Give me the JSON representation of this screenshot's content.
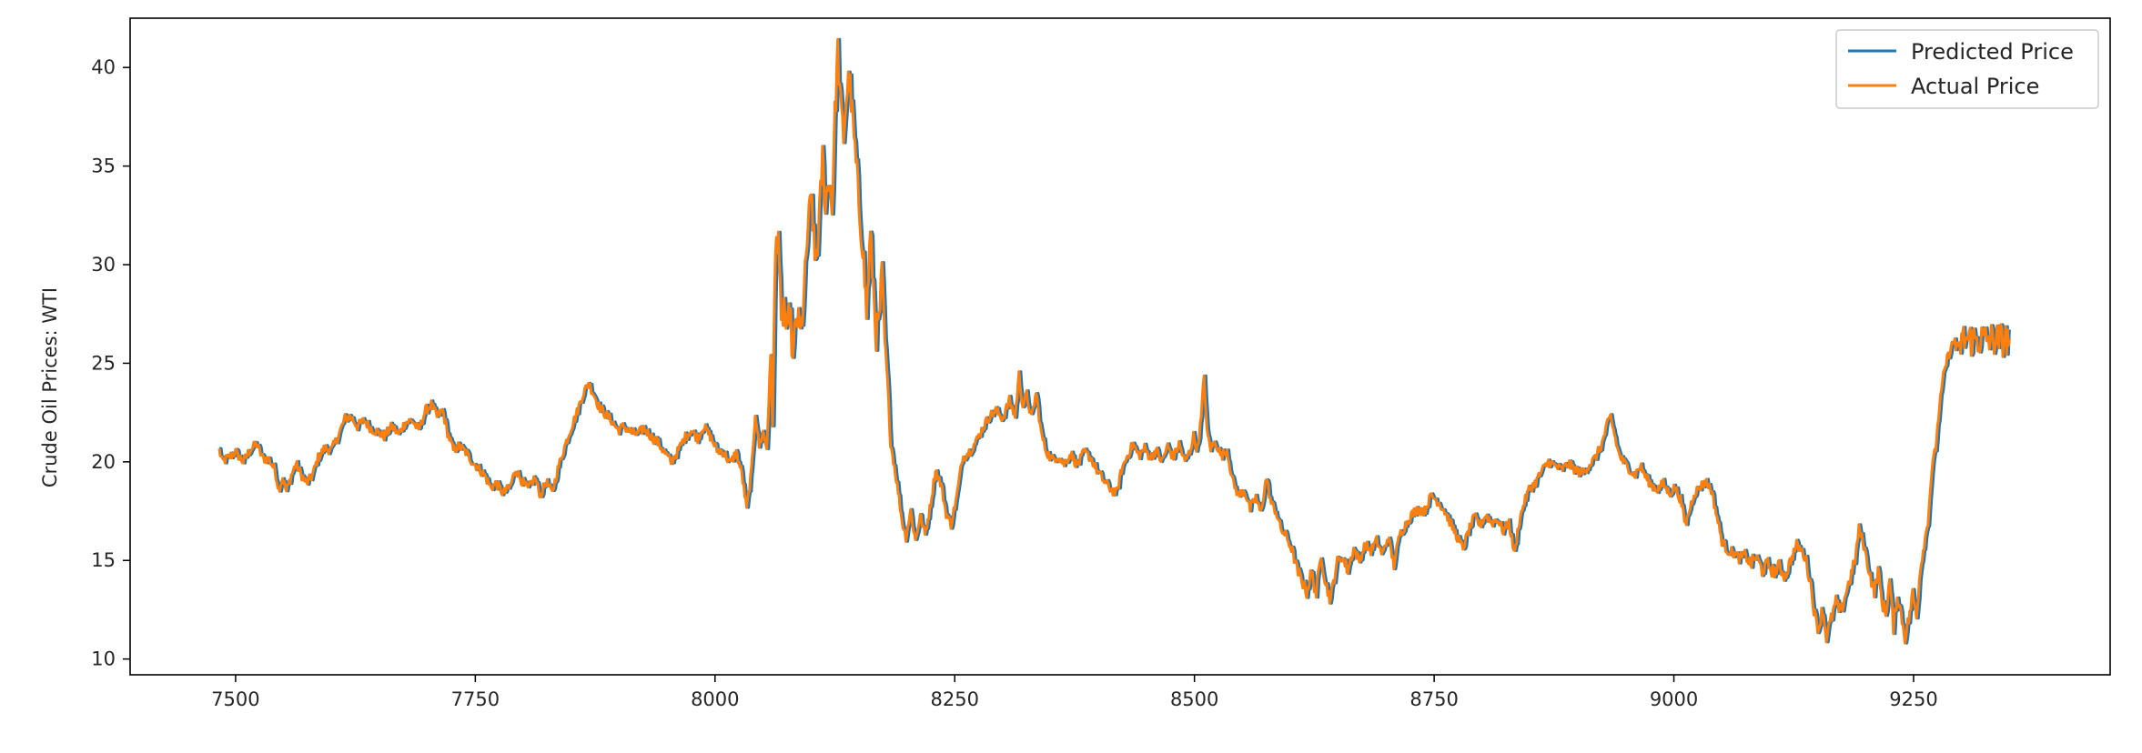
{
  "chart_data": {
    "type": "line",
    "title": "",
    "xlabel": "",
    "ylabel": "Crude Oil Prices: WTI",
    "xlim": [
      7390,
      9455
    ],
    "ylim": [
      9.2,
      42.5
    ],
    "xticks": [
      7500,
      7750,
      8000,
      8250,
      8500,
      8750,
      9000,
      9250
    ],
    "yticks": [
      10,
      15,
      20,
      25,
      30,
      35,
      40
    ],
    "grid": false,
    "legend_position": "top-right",
    "colors": {
      "predicted": "#1f77b4",
      "actual": "#ff7f0e"
    },
    "x_start": 7483,
    "x_end": 9350,
    "predicted_lag": 2,
    "series": [
      {
        "name": "Predicted Price",
        "color": "#1f77b4",
        "key": "predicted"
      },
      {
        "name": "Actual Price",
        "color": "#ff7f0e",
        "key": "actual"
      }
    ],
    "actual_keypoints": [
      [
        7483,
        20.6
      ],
      [
        7486,
        20.0
      ],
      [
        7492,
        20.2
      ],
      [
        7500,
        20.5
      ],
      [
        7508,
        20.0
      ],
      [
        7515,
        20.6
      ],
      [
        7522,
        20.9
      ],
      [
        7528,
        20.2
      ],
      [
        7535,
        20.1
      ],
      [
        7541,
        19.6
      ],
      [
        7545,
        18.6
      ],
      [
        7549,
        19.2
      ],
      [
        7553,
        18.5
      ],
      [
        7558,
        19.3
      ],
      [
        7563,
        19.9
      ],
      [
        7568,
        19.4
      ],
      [
        7574,
        18.9
      ],
      [
        7580,
        19.3
      ],
      [
        7586,
        20.2
      ],
      [
        7593,
        20.7
      ],
      [
        7600,
        20.6
      ],
      [
        7607,
        21.3
      ],
      [
        7614,
        22.2
      ],
      [
        7620,
        22.3
      ],
      [
        7627,
        21.8
      ],
      [
        7634,
        22.1
      ],
      [
        7641,
        21.7
      ],
      [
        7648,
        21.5
      ],
      [
        7655,
        21.3
      ],
      [
        7663,
        21.8
      ],
      [
        7670,
        21.4
      ],
      [
        7677,
        22.0
      ],
      [
        7684,
        22.1
      ],
      [
        7691,
        21.6
      ],
      [
        7698,
        22.6
      ],
      [
        7704,
        22.9
      ],
      [
        7710,
        22.3
      ],
      [
        7716,
        22.6
      ],
      [
        7721,
        21.5
      ],
      [
        7727,
        20.6
      ],
      [
        7733,
        20.8
      ],
      [
        7740,
        20.5
      ],
      [
        7747,
        20.0
      ],
      [
        7753,
        19.7
      ],
      [
        7760,
        19.3
      ],
      [
        7766,
        18.7
      ],
      [
        7772,
        18.9
      ],
      [
        7779,
        18.4
      ],
      [
        7786,
        18.7
      ],
      [
        7792,
        19.6
      ],
      [
        7799,
        19.0
      ],
      [
        7805,
        18.6
      ],
      [
        7812,
        19.2
      ],
      [
        7818,
        18.3
      ],
      [
        7824,
        19.0
      ],
      [
        7830,
        18.4
      ],
      [
        7836,
        19.6
      ],
      [
        7842,
        20.6
      ],
      [
        7849,
        21.6
      ],
      [
        7856,
        22.5
      ],
      [
        7862,
        23.4
      ],
      [
        7868,
        24.0
      ],
      [
        7873,
        23.5
      ],
      [
        7879,
        22.8
      ],
      [
        7886,
        22.4
      ],
      [
        7892,
        22.1
      ],
      [
        7899,
        21.6
      ],
      [
        7905,
        21.8
      ],
      [
        7912,
        21.5
      ],
      [
        7919,
        21.4
      ],
      [
        7926,
        21.7
      ],
      [
        7933,
        21.3
      ],
      [
        7940,
        21.0
      ],
      [
        7947,
        20.5
      ],
      [
        7954,
        20.0
      ],
      [
        7961,
        20.5
      ],
      [
        7968,
        21.2
      ],
      [
        7975,
        21.6
      ],
      [
        7982,
        21.2
      ],
      [
        7988,
        21.8
      ],
      [
        7995,
        21.3
      ],
      [
        8002,
        20.6
      ],
      [
        8009,
        20.5
      ],
      [
        8016,
        19.9
      ],
      [
        8022,
        20.5
      ],
      [
        8028,
        19.4
      ],
      [
        8033,
        17.6
      ],
      [
        8038,
        19.5
      ],
      [
        8042,
        22.5
      ],
      [
        8046,
        20.8
      ],
      [
        8050,
        21.5
      ],
      [
        8054,
        20.7
      ],
      [
        8058,
        25.3
      ],
      [
        8060,
        22.0
      ],
      [
        8063,
        30.5
      ],
      [
        8066,
        32.0
      ],
      [
        8069,
        26.5
      ],
      [
        8072,
        28.0
      ],
      [
        8075,
        26.2
      ],
      [
        8078,
        27.8
      ],
      [
        8081,
        25.2
      ],
      [
        8085,
        27.5
      ],
      [
        8089,
        26.4
      ],
      [
        8093,
        28.5
      ],
      [
        8097,
        32.0
      ],
      [
        8101,
        33.5
      ],
      [
        8104,
        30.0
      ],
      [
        8108,
        31.5
      ],
      [
        8112,
        35.5
      ],
      [
        8115,
        33.0
      ],
      [
        8119,
        34.5
      ],
      [
        8122,
        32.8
      ],
      [
        8125,
        37.5
      ],
      [
        8128,
        40.8
      ],
      [
        8131,
        38.0
      ],
      [
        8134,
        36.5
      ],
      [
        8137,
        38.5
      ],
      [
        8140,
        39.5
      ],
      [
        8144,
        37.0
      ],
      [
        8148,
        34.5
      ],
      [
        8151,
        32.5
      ],
      [
        8154,
        31.0
      ],
      [
        8158,
        27.5
      ],
      [
        8162,
        31.5
      ],
      [
        8165,
        29.0
      ],
      [
        8168,
        26.5
      ],
      [
        8171,
        27.0
      ],
      [
        8174,
        29.5
      ],
      [
        8177,
        26.2
      ],
      [
        8180,
        24.0
      ],
      [
        8183,
        21.0
      ],
      [
        8187,
        19.8
      ],
      [
        8191,
        18.5
      ],
      [
        8195,
        17.0
      ],
      [
        8199,
        16.2
      ],
      [
        8204,
        17.5
      ],
      [
        8209,
        16.0
      ],
      [
        8214,
        17.3
      ],
      [
        8219,
        16.3
      ],
      [
        8224,
        17.6
      ],
      [
        8230,
        19.6
      ],
      [
        8236,
        18.8
      ],
      [
        8241,
        17.4
      ],
      [
        8246,
        16.8
      ],
      [
        8252,
        18.2
      ],
      [
        8258,
        20.2
      ],
      [
        8265,
        20.5
      ],
      [
        8272,
        21.0
      ],
      [
        8279,
        21.7
      ],
      [
        8286,
        22.3
      ],
      [
        8293,
        22.6
      ],
      [
        8300,
        22.2
      ],
      [
        8307,
        23.1
      ],
      [
        8313,
        22.3
      ],
      [
        8317,
        24.4
      ],
      [
        8321,
        22.8
      ],
      [
        8325,
        23.4
      ],
      [
        8330,
        22.2
      ],
      [
        8335,
        23.5
      ],
      [
        8340,
        21.5
      ],
      [
        8345,
        20.6
      ],
      [
        8351,
        20.1
      ],
      [
        8357,
        20.3
      ],
      [
        8364,
        19.9
      ],
      [
        8371,
        20.4
      ],
      [
        8378,
        19.8
      ],
      [
        8385,
        20.5
      ],
      [
        8392,
        20.2
      ],
      [
        8399,
        19.5
      ],
      [
        8406,
        19.0
      ],
      [
        8413,
        18.6
      ],
      [
        8419,
        18.4
      ],
      [
        8424,
        19.6
      ],
      [
        8430,
        20.3
      ],
      [
        8436,
        20.9
      ],
      [
        8442,
        20.3
      ],
      [
        8448,
        20.7
      ],
      [
        8454,
        20.2
      ],
      [
        8460,
        20.6
      ],
      [
        8466,
        20.0
      ],
      [
        8472,
        20.8
      ],
      [
        8478,
        20.2
      ],
      [
        8484,
        20.9
      ],
      [
        8490,
        20.0
      ],
      [
        8495,
        20.5
      ],
      [
        8499,
        21.3
      ],
      [
        8503,
        20.6
      ],
      [
        8507,
        22.2
      ],
      [
        8510,
        24.4
      ],
      [
        8513,
        21.5
      ],
      [
        8517,
        20.7
      ],
      [
        8522,
        21.0
      ],
      [
        8528,
        20.3
      ],
      [
        8534,
        20.6
      ],
      [
        8540,
        19.0
      ],
      [
        8546,
        18.3
      ],
      [
        8552,
        18.6
      ],
      [
        8558,
        17.6
      ],
      [
        8564,
        18.2
      ],
      [
        8569,
        17.4
      ],
      [
        8575,
        19.2
      ],
      [
        8580,
        17.9
      ],
      [
        8585,
        17.5
      ],
      [
        8590,
        16.6
      ],
      [
        8596,
        16.2
      ],
      [
        8602,
        15.5
      ],
      [
        8607,
        14.5
      ],
      [
        8612,
        14.0
      ],
      [
        8617,
        13.4
      ],
      [
        8622,
        14.4
      ],
      [
        8627,
        13.3
      ],
      [
        8632,
        15.3
      ],
      [
        8637,
        13.8
      ],
      [
        8642,
        13.0
      ],
      [
        8648,
        14.8
      ],
      [
        8654,
        15.2
      ],
      [
        8660,
        14.5
      ],
      [
        8666,
        15.6
      ],
      [
        8672,
        15.0
      ],
      [
        8678,
        15.8
      ],
      [
        8684,
        15.5
      ],
      [
        8690,
        16.0
      ],
      [
        8696,
        15.3
      ],
      [
        8702,
        16.2
      ],
      [
        8708,
        14.8
      ],
      [
        8714,
        16.3
      ],
      [
        8720,
        16.8
      ],
      [
        8726,
        17.3
      ],
      [
        8733,
        17.6
      ],
      [
        8740,
        17.5
      ],
      [
        8747,
        18.3
      ],
      [
        8754,
        18.0
      ],
      [
        8761,
        17.5
      ],
      [
        8768,
        16.8
      ],
      [
        8774,
        16.2
      ],
      [
        8780,
        15.6
      ],
      [
        8786,
        16.5
      ],
      [
        8792,
        17.2
      ],
      [
        8798,
        16.8
      ],
      [
        8804,
        17.3
      ],
      [
        8810,
        16.9
      ],
      [
        8816,
        17.1
      ],
      [
        8822,
        16.5
      ],
      [
        8828,
        16.9
      ],
      [
        8834,
        15.3
      ],
      [
        8838,
        16.8
      ],
      [
        8843,
        17.8
      ],
      [
        8849,
        18.6
      ],
      [
        8855,
        18.9
      ],
      [
        8862,
        19.5
      ],
      [
        8869,
        20.0
      ],
      [
        8876,
        19.8
      ],
      [
        8883,
        19.6
      ],
      [
        8890,
        19.9
      ],
      [
        8897,
        19.6
      ],
      [
        8904,
        19.4
      ],
      [
        8911,
        19.8
      ],
      [
        8918,
        20.2
      ],
      [
        8925,
        20.9
      ],
      [
        8930,
        21.8
      ],
      [
        8934,
        22.3
      ],
      [
        8938,
        21.4
      ],
      [
        8942,
        20.5
      ],
      [
        8947,
        20.0
      ],
      [
        8953,
        19.7
      ],
      [
        8959,
        19.3
      ],
      [
        8965,
        19.8
      ],
      [
        8971,
        19.2
      ],
      [
        8977,
        18.8
      ],
      [
        8983,
        18.6
      ],
      [
        8989,
        18.9
      ],
      [
        8995,
        18.4
      ],
      [
        9001,
        18.7
      ],
      [
        9007,
        18.1
      ],
      [
        9012,
        16.8
      ],
      [
        9016,
        17.5
      ],
      [
        9021,
        18.4
      ],
      [
        9027,
        18.7
      ],
      [
        9033,
        19.0
      ],
      [
        9039,
        18.6
      ],
      [
        9045,
        17.2
      ],
      [
        9050,
        16.0
      ],
      [
        9056,
        15.5
      ],
      [
        9062,
        15.4
      ],
      [
        9068,
        15.1
      ],
      [
        9074,
        15.3
      ],
      [
        9080,
        14.8
      ],
      [
        9086,
        15.2
      ],
      [
        9092,
        14.5
      ],
      [
        9098,
        14.8
      ],
      [
        9104,
        14.4
      ],
      [
        9110,
        14.7
      ],
      [
        9116,
        14.2
      ],
      [
        9122,
        15.0
      ],
      [
        9128,
        15.8
      ],
      [
        9133,
        15.5
      ],
      [
        9138,
        15.0
      ],
      [
        9143,
        13.7
      ],
      [
        9147,
        12.2
      ],
      [
        9151,
        11.5
      ],
      [
        9155,
        12.6
      ],
      [
        9159,
        11.1
      ],
      [
        9164,
        12.0
      ],
      [
        9169,
        12.9
      ],
      [
        9174,
        12.3
      ],
      [
        9179,
        13.3
      ],
      [
        9184,
        14.1
      ],
      [
        9189,
        15.0
      ],
      [
        9193,
        16.6
      ],
      [
        9197,
        16.0
      ],
      [
        9201,
        15.1
      ],
      [
        9205,
        14.2
      ],
      [
        9209,
        13.4
      ],
      [
        9213,
        14.5
      ],
      [
        9217,
        12.9
      ],
      [
        9221,
        12.3
      ],
      [
        9225,
        14.0
      ],
      [
        9229,
        11.6
      ],
      [
        9233,
        13.2
      ],
      [
        9237,
        12.3
      ],
      [
        9241,
        11.1
      ],
      [
        9245,
        12.0
      ],
      [
        9249,
        13.3
      ],
      [
        9253,
        12.2
      ],
      [
        9257,
        14.6
      ],
      [
        9261,
        15.8
      ],
      [
        9265,
        17.0
      ],
      [
        9269,
        19.6
      ],
      [
        9273,
        20.7
      ],
      [
        9277,
        22.8
      ],
      [
        9281,
        24.3
      ],
      [
        9285,
        25.2
      ],
      [
        9289,
        25.8
      ],
      [
        9293,
        26.2
      ],
      [
        9297,
        25.7
      ],
      [
        9300,
        26.2
      ]
    ]
  }
}
